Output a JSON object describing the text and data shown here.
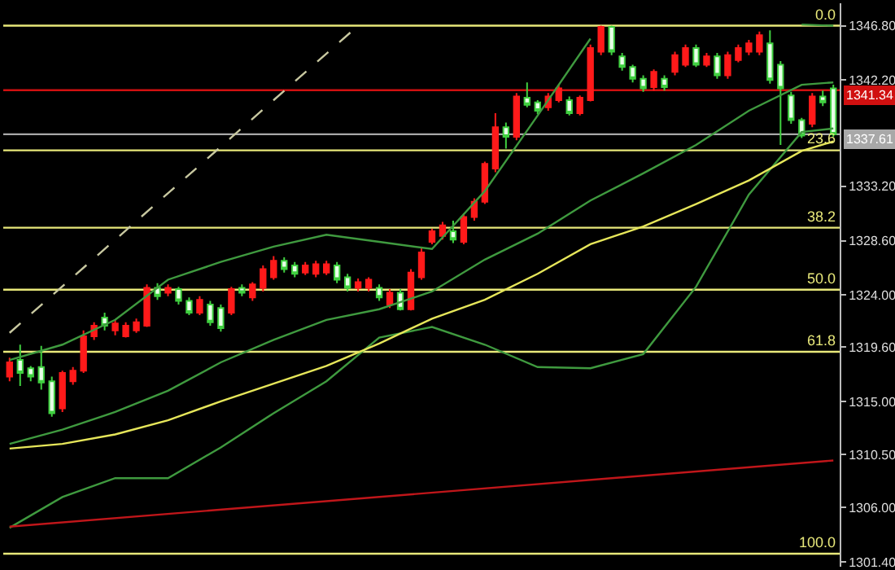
{
  "chart_data": {
    "type": "candlestick",
    "categories": [
      null,
      null,
      null,
      null,
      null,
      null,
      null,
      null,
      null,
      null,
      null,
      null,
      null,
      null,
      null,
      null,
      null,
      null,
      null,
      null,
      null,
      null,
      null,
      null,
      null,
      null,
      null,
      null,
      null,
      null,
      null,
      null,
      null,
      null,
      null,
      null,
      null,
      null,
      null,
      null,
      null,
      null,
      null,
      null,
      null,
      null,
      null,
      null,
      null,
      null,
      null,
      null,
      null,
      null,
      null,
      null,
      null,
      null,
      null,
      null,
      null,
      null,
      null,
      null,
      null,
      null,
      null,
      null,
      null,
      null,
      null,
      null,
      null,
      null,
      null,
      null,
      null,
      null,
      null
    ],
    "ohlc": [
      [
        1317.1,
        1318.7,
        1316.7,
        1318.3
      ],
      [
        1318.5,
        1319.8,
        1316.3,
        1317.4
      ],
      [
        1317.8,
        1318.0,
        1316.7,
        1317.1
      ],
      [
        1317.9,
        1319.7,
        1316.0,
        1316.6
      ],
      [
        1316.7,
        1317.1,
        1313.7,
        1314.0
      ],
      [
        1314.4,
        1317.6,
        1314.1,
        1317.4
      ],
      [
        1316.7,
        1317.9,
        1316.4,
        1317.6
      ],
      [
        1317.6,
        1321.0,
        1317.4,
        1320.5
      ],
      [
        1320.5,
        1321.7,
        1320.2,
        1321.4
      ],
      [
        1322.1,
        1322.5,
        1321.0,
        1321.4
      ],
      [
        1321.0,
        1321.9,
        1320.6,
        1321.6
      ],
      [
        1320.5,
        1321.7,
        1320.4,
        1321.4
      ],
      [
        1321.0,
        1322.0,
        1320.8,
        1321.7
      ],
      [
        1321.4,
        1324.9,
        1321.3,
        1324.6
      ],
      [
        1324.6,
        1325.0,
        1323.6,
        1323.9
      ],
      [
        1324.2,
        1324.9,
        1323.9,
        1324.6
      ],
      [
        1324.5,
        1324.7,
        1323.2,
        1323.5
      ],
      [
        1323.5,
        1323.8,
        1322.3,
        1322.5
      ],
      [
        1322.5,
        1323.9,
        1322.3,
        1323.6
      ],
      [
        1323.2,
        1323.5,
        1321.4,
        1321.7
      ],
      [
        1322.9,
        1323.2,
        1320.9,
        1321.2
      ],
      [
        1322.5,
        1324.7,
        1322.3,
        1324.5
      ],
      [
        1324.6,
        1324.9,
        1323.9,
        1324.2
      ],
      [
        1323.8,
        1325.1,
        1323.5,
        1324.9
      ],
      [
        1324.6,
        1326.5,
        1324.3,
        1326.2
      ],
      [
        1325.5,
        1327.3,
        1325.3,
        1326.9
      ],
      [
        1326.9,
        1327.2,
        1325.9,
        1326.2
      ],
      [
        1326.5,
        1326.8,
        1325.5,
        1325.8
      ],
      [
        1325.9,
        1326.8,
        1325.7,
        1326.5
      ],
      [
        1325.8,
        1326.9,
        1325.5,
        1326.6
      ],
      [
        1325.9,
        1326.9,
        1325.7,
        1326.6
      ],
      [
        1326.5,
        1326.8,
        1325.0,
        1325.3
      ],
      [
        1325.5,
        1325.8,
        1324.3,
        1324.6
      ],
      [
        1324.6,
        1325.4,
        1324.3,
        1325.1
      ],
      [
        1324.6,
        1325.5,
        1324.3,
        1325.3
      ],
      [
        1324.6,
        1324.9,
        1323.5,
        1323.8
      ],
      [
        1323.2,
        1324.5,
        1322.9,
        1324.2
      ],
      [
        1324.2,
        1324.5,
        1322.7,
        1322.8
      ],
      [
        1322.8,
        1326.2,
        1322.7,
        1325.9
      ],
      [
        1325.5,
        1328.0,
        1325.3,
        1327.6
      ],
      [
        1328.5,
        1329.6,
        1328.3,
        1329.4
      ],
      [
        1329.0,
        1330.2,
        1328.7,
        1329.9
      ],
      [
        1329.4,
        1330.3,
        1328.4,
        1328.7
      ],
      [
        1328.5,
        1330.9,
        1328.3,
        1330.6
      ],
      [
        1330.6,
        1332.2,
        1330.3,
        1331.9
      ],
      [
        1331.9,
        1335.3,
        1331.7,
        1335.1
      ],
      [
        1334.7,
        1339.4,
        1334.4,
        1338.2
      ],
      [
        1338.2,
        1338.6,
        1336.4,
        1337.4
      ],
      [
        1337.4,
        1341.1,
        1337.1,
        1340.8
      ],
      [
        1340.7,
        1342.0,
        1339.9,
        1340.1
      ],
      [
        1340.3,
        1340.5,
        1339.3,
        1339.6
      ],
      [
        1339.9,
        1341.1,
        1339.6,
        1340.8
      ],
      [
        1340.5,
        1341.8,
        1340.3,
        1341.5
      ],
      [
        1340.5,
        1340.8,
        1339.2,
        1339.4
      ],
      [
        1339.4,
        1340.9,
        1339.2,
        1340.7
      ],
      [
        1340.5,
        1345.2,
        1340.4,
        1344.9
      ],
      [
        1344.6,
        1346.8,
        1344.3,
        1346.7
      ],
      [
        1346.7,
        1346.8,
        1344.3,
        1344.6
      ],
      [
        1344.2,
        1344.5,
        1343.0,
        1343.3
      ],
      [
        1343.3,
        1343.5,
        1342.0,
        1342.3
      ],
      [
        1342.3,
        1342.6,
        1341.2,
        1341.5
      ],
      [
        1341.6,
        1343.1,
        1341.3,
        1342.9
      ],
      [
        1342.3,
        1342.6,
        1341.3,
        1341.6
      ],
      [
        1342.9,
        1344.6,
        1342.6,
        1344.3
      ],
      [
        1343.5,
        1345.2,
        1343.3,
        1344.9
      ],
      [
        1344.9,
        1345.2,
        1343.3,
        1343.5
      ],
      [
        1343.5,
        1344.5,
        1343.3,
        1344.2
      ],
      [
        1344.2,
        1344.5,
        1342.3,
        1342.6
      ],
      [
        1342.6,
        1344.6,
        1342.3,
        1344.3
      ],
      [
        1343.9,
        1345.2,
        1343.7,
        1344.9
      ],
      [
        1344.6,
        1345.6,
        1344.3,
        1345.3
      ],
      [
        1344.6,
        1346.3,
        1344.3,
        1346.0
      ],
      [
        1345.3,
        1346.4,
        1341.9,
        1342.2
      ],
      [
        1343.5,
        1343.8,
        1336.7,
        1341.5
      ],
      [
        1340.9,
        1341.2,
        1338.5,
        1338.8
      ],
      [
        1338.8,
        1339.0,
        1337.3,
        1337.5
      ],
      [
        1338.5,
        1341.1,
        1338.2,
        1340.8
      ],
      [
        1340.8,
        1341.3,
        1340.0,
        1340.3
      ],
      [
        1341.5,
        1341.8,
        1337.4,
        1337.61
      ]
    ],
    "series": [
      {
        "type": "line",
        "color": "#3f9a3f",
        "values": [
          1318.5,
          null,
          null,
          null,
          null,
          1319.8,
          null,
          null,
          null,
          null,
          1321.9,
          null,
          null,
          null,
          null,
          1325.3,
          null,
          null,
          null,
          null,
          1326.8,
          null,
          null,
          null,
          null,
          1328.1,
          null,
          null,
          null,
          null,
          1329.1,
          null,
          null,
          null,
          null,
          1328.5,
          null,
          null,
          null,
          null,
          1327.9,
          null,
          null,
          null,
          null,
          1332.8,
          null,
          null,
          null,
          null,
          1339.2,
          null,
          null,
          null,
          null,
          1345.7,
          null,
          null,
          null,
          null,
          null,
          null,
          null,
          null,
          null,
          null,
          null,
          null,
          null,
          null,
          null,
          null,
          null,
          null,
          null,
          null,
          null,
          null,
          null
        ]
      },
      {
        "type": "line",
        "color": "#3f9a3f",
        "values": [
          null,
          null,
          null,
          null,
          null,
          null,
          null,
          null,
          null,
          null,
          null,
          null,
          null,
          null,
          null,
          null,
          null,
          null,
          null,
          null,
          null,
          null,
          null,
          null,
          null,
          null,
          null,
          null,
          null,
          null,
          null,
          null,
          null,
          null,
          null,
          null,
          null,
          null,
          null,
          null,
          null,
          null,
          null,
          null,
          null,
          null,
          null,
          null,
          null,
          null,
          null,
          null,
          null,
          null,
          null,
          null,
          null,
          null,
          null,
          null,
          null,
          null,
          null,
          null,
          null,
          null,
          null,
          null,
          null,
          null,
          null,
          null,
          null,
          null,
          null,
          1346.9,
          null,
          null,
          1346.8
        ]
      },
      {
        "type": "line",
        "color": "#3f9a3f",
        "values": [
          1311.4,
          null,
          null,
          null,
          null,
          1312.6,
          null,
          null,
          null,
          null,
          1314.1,
          null,
          null,
          null,
          null,
          1315.9,
          null,
          null,
          null,
          null,
          1318.3,
          null,
          null,
          null,
          null,
          1320.2,
          null,
          null,
          null,
          null,
          1321.9,
          null,
          null,
          null,
          null,
          1322.8,
          null,
          null,
          null,
          null,
          1324.3,
          null,
          null,
          null,
          null,
          1327.0,
          null,
          null,
          null,
          null,
          1329.2,
          null,
          null,
          null,
          null,
          1332.0,
          null,
          null,
          null,
          null,
          1334.3,
          null,
          null,
          null,
          null,
          1336.7,
          null,
          null,
          null,
          null,
          1339.6,
          null,
          null,
          null,
          null,
          1341.8,
          null,
          null,
          1342.0
        ]
      },
      {
        "type": "line",
        "color": "#3f9a3f",
        "values": [
          1304.3,
          null,
          null,
          null,
          null,
          1306.9,
          null,
          null,
          null,
          null,
          1308.5,
          null,
          null,
          null,
          null,
          1308.5,
          null,
          null,
          null,
          null,
          1311.1,
          null,
          null,
          null,
          null,
          1314.0,
          null,
          null,
          null,
          null,
          1316.7,
          null,
          null,
          null,
          null,
          1320.4,
          null,
          null,
          null,
          null,
          1321.3,
          null,
          null,
          null,
          null,
          1319.8,
          null,
          null,
          null,
          null,
          1317.9,
          null,
          null,
          null,
          null,
          1317.8,
          null,
          null,
          null,
          null,
          1319.0,
          null,
          null,
          null,
          null,
          1324.7,
          null,
          null,
          null,
          null,
          1332.5,
          null,
          null,
          null,
          null,
          1337.8,
          null,
          null,
          1338.1
        ]
      },
      {
        "type": "line",
        "color": "#e6e65a",
        "values": [
          1311.0,
          null,
          null,
          null,
          null,
          1311.4,
          null,
          null,
          null,
          null,
          1312.2,
          null,
          null,
          null,
          null,
          1313.4,
          null,
          null,
          null,
          null,
          1315.0,
          null,
          null,
          null,
          null,
          1316.5,
          null,
          null,
          null,
          null,
          1318.0,
          null,
          null,
          null,
          null,
          1319.9,
          null,
          null,
          null,
          null,
          1322.0,
          null,
          null,
          null,
          null,
          1323.6,
          null,
          null,
          null,
          null,
          1325.8,
          null,
          null,
          null,
          null,
          1328.3,
          null,
          null,
          null,
          null,
          1329.8,
          null,
          null,
          null,
          null,
          1331.7,
          null,
          null,
          null,
          null,
          1333.7,
          null,
          null,
          null,
          null,
          1336.2,
          null,
          null,
          1337.0
        ]
      },
      {
        "type": "line",
        "color": "#c8c8a0",
        "line_style": "dashed",
        "values": [
          1320.8,
          null,
          null,
          null,
          null,
          null,
          null,
          null,
          null,
          null,
          null,
          null,
          null,
          null,
          null,
          null,
          null,
          null,
          null,
          null,
          null,
          null,
          null,
          null,
          null,
          null,
          null,
          null,
          null,
          null,
          null,
          null,
          null,
          1346.8,
          null,
          null,
          null,
          null,
          null,
          null,
          null,
          null,
          null,
          null,
          null,
          null,
          null,
          null,
          null,
          null,
          null,
          null,
          null,
          null,
          null,
          null,
          null,
          null,
          null,
          null,
          null,
          null,
          null,
          null,
          null,
          null,
          null,
          null,
          null,
          null,
          null,
          null,
          null,
          null,
          null,
          null,
          null,
          null,
          null
        ]
      },
      {
        "type": "line",
        "color": "#c0161a",
        "values": [
          1304.4,
          null,
          null,
          null,
          null,
          null,
          null,
          null,
          null,
          null,
          null,
          null,
          null,
          null,
          null,
          null,
          null,
          null,
          null,
          null,
          null,
          null,
          null,
          null,
          null,
          null,
          null,
          null,
          null,
          null,
          null,
          null,
          null,
          null,
          null,
          null,
          null,
          null,
          null,
          null,
          null,
          null,
          null,
          null,
          null,
          null,
          null,
          null,
          null,
          null,
          null,
          null,
          null,
          null,
          null,
          null,
          null,
          null,
          null,
          null,
          null,
          null,
          null,
          null,
          null,
          null,
          null,
          null,
          null,
          null,
          null,
          null,
          null,
          null,
          null,
          null,
          null,
          null,
          1310.0
        ]
      }
    ],
    "ylim": [
      1301.0,
      1348.7
    ],
    "yticks": [
      {
        "value": 1346.8,
        "label": "1346.80"
      },
      {
        "value": 1342.2,
        "label": "1342.20"
      },
      {
        "value": 1333.2,
        "label": "1333.20"
      },
      {
        "value": 1328.6,
        "label": "1328.60"
      },
      {
        "value": 1324,
        "label": "1324.00"
      },
      {
        "value": 1319.6,
        "label": "1319.60"
      },
      {
        "value": 1315,
        "label": "1315.00"
      },
      {
        "value": 1310.5,
        "label": "1310.50"
      },
      {
        "value": 1306,
        "label": "1306.00"
      },
      {
        "value": 1301.4,
        "label": "1301.40"
      }
    ],
    "ref_lines": [
      {
        "axis": "y",
        "value": 1346.8,
        "color": "#e8e87a"
      },
      {
        "axis": "y",
        "value": 1336.25,
        "color": "#e8e87a"
      },
      {
        "axis": "y",
        "value": 1329.7,
        "color": "#e8e87a"
      },
      {
        "axis": "y",
        "value": 1324.45,
        "color": "#e8e87a"
      },
      {
        "axis": "y",
        "value": 1319.2,
        "color": "#e8e87a"
      },
      {
        "axis": "y",
        "value": 1302.1,
        "color": "#e8e87a"
      },
      {
        "axis": "y",
        "value": 1341.34,
        "label": "1341.34",
        "color": "#d01010"
      },
      {
        "axis": "y",
        "value": 1337.61,
        "label": "1337.61",
        "color": "#a8a8a8"
      }
    ],
    "annotations": [
      {
        "text": "0.0",
        "y": 1346.8
      },
      {
        "text": "23.6",
        "y": 1336.25
      },
      {
        "text": "38.2",
        "y": 1329.7
      },
      {
        "text": "50.0",
        "y": 1324.45
      },
      {
        "text": "61.8",
        "y": 1319.2
      },
      {
        "text": "100.0",
        "y": 1302.1
      }
    ],
    "tick_labels": "y"
  }
}
